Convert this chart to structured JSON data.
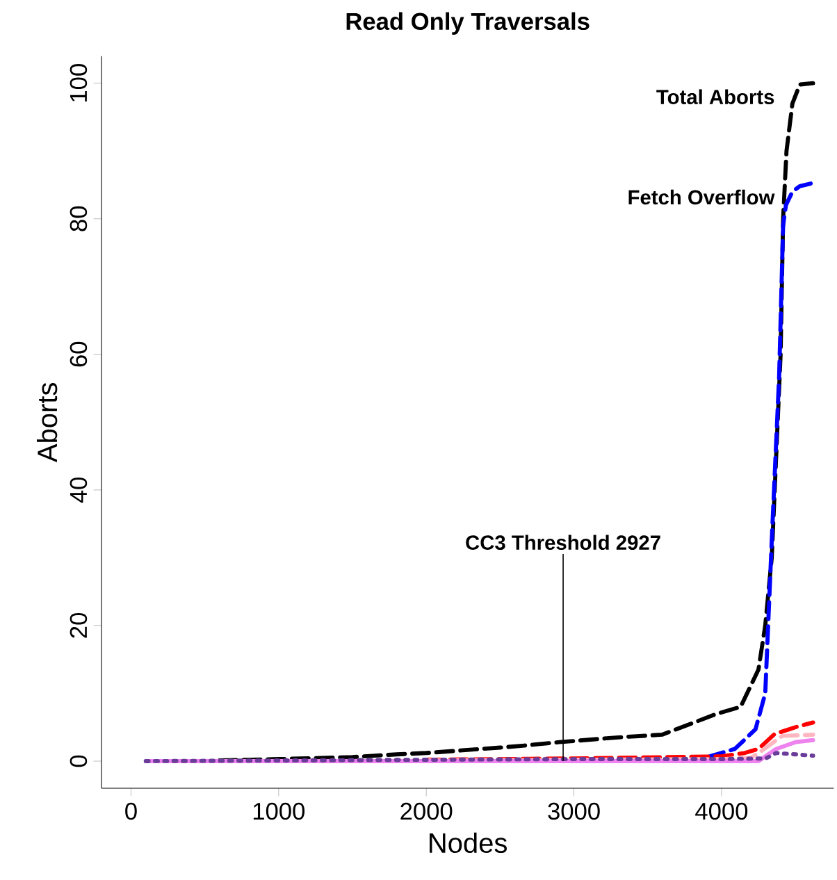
{
  "chart_data": {
    "type": "line",
    "title": "Read Only Traversals",
    "xlabel": "Nodes",
    "ylabel": "Aborts",
    "xlim": [
      -200,
      4760
    ],
    "ylim": [
      -4,
      104
    ],
    "xticks": [
      0,
      1000,
      2000,
      3000,
      4000
    ],
    "yticks": [
      0,
      20,
      40,
      60,
      80,
      100
    ],
    "grid": false,
    "legend": false,
    "marker": "none",
    "ref_lines": [
      {
        "axis": "x",
        "value": 2927,
        "label": "CC3 Threshold 2927"
      }
    ],
    "series": [
      {
        "name": "Total Aborts",
        "color": "#000000",
        "line_style": "dashed",
        "x": [
          600,
          1000,
          1500,
          1800,
          2000,
          2500,
          2665,
          2900,
          3300,
          3597,
          3970,
          4129,
          4250,
          4296,
          4340,
          4400,
          4417,
          4440,
          4480,
          4530,
          4620
        ],
        "values": [
          0.1,
          0.3,
          0.6,
          1.0,
          1.2,
          2.0,
          2.3,
          2.8,
          3.5,
          3.9,
          7,
          8,
          13.5,
          20,
          30,
          60,
          80,
          90,
          97,
          99.8,
          100
        ]
      },
      {
        "name": "Fetch Overflow",
        "color": "#0000ff",
        "line_style": "dashed",
        "x": [
          3905,
          4090,
          4230,
          4296,
          4343,
          4390,
          4417,
          4436,
          4480,
          4530,
          4604
        ],
        "values": [
          0.6,
          1.8,
          4.7,
          10,
          34,
          56.7,
          79,
          82,
          84,
          84.8,
          85.2
        ]
      },
      {
        "color": "#ff0000",
        "line_style": "dashed",
        "x": [
          2000,
          3000,
          4000,
          4157,
          4250,
          4360,
          4500,
          4620
        ],
        "values": [
          0.2,
          0.4,
          0.7,
          1.2,
          1.8,
          4,
          5,
          5.7
        ]
      },
      {
        "color": "#ffb6c1",
        "line_style": "dashed",
        "x": [
          2000,
          3000,
          4000,
          4200,
          4277,
          4410,
          4620
        ],
        "values": [
          0.1,
          0.2,
          0.3,
          0.5,
          1.6,
          3.7,
          3.9
        ]
      },
      {
        "color": "#ee82ee",
        "line_style": "solid",
        "x": [
          100,
          1000,
          2000,
          3000,
          4000,
          4250,
          4370,
          4500,
          4620
        ],
        "values": [
          0,
          0,
          0,
          0,
          0,
          0,
          1.8,
          2.8,
          3.1
        ]
      },
      {
        "color": "#6a3d9a",
        "line_style": "dotted",
        "x": [
          100,
          1000,
          2000,
          3000,
          4000,
          4300,
          4370,
          4500,
          4620
        ],
        "values": [
          0,
          0.1,
          0.2,
          0.3,
          0.3,
          0.4,
          1.2,
          1.0,
          0.8
        ]
      }
    ]
  }
}
